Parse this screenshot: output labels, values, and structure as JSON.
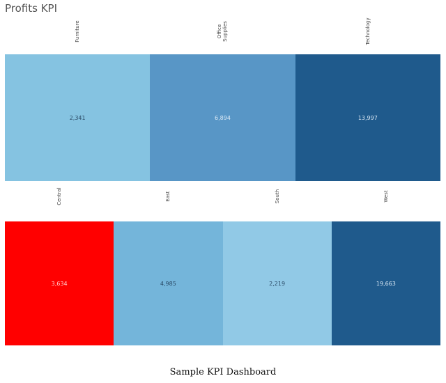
{
  "title": "Profits KPI",
  "caption": "Sample KPI Dashboard",
  "chart_data": [
    {
      "type": "heatmap",
      "title": "Profits KPI",
      "categories": [
        "Furniture",
        "Office\nSupplies",
        "Technology"
      ],
      "values": [
        "2,341",
        "6,894",
        "13,997"
      ],
      "colors": [
        "#85c3e1",
        "#5896c6",
        "#1f5a8c"
      ],
      "text_colors": [
        "#2a4a66",
        "#dbe9f5",
        "#dbe9f5"
      ]
    },
    {
      "type": "heatmap",
      "categories": [
        "Central",
        "East",
        "South",
        "West"
      ],
      "values": [
        "3,634",
        "4,985",
        "2,219",
        "19,663"
      ],
      "colors": [
        "#ff0000",
        "#74b5da",
        "#91c9e6",
        "#1f5a8c"
      ],
      "text_colors": [
        "#ffd0d0",
        "#2a4a66",
        "#2a4a66",
        "#dbe9f5"
      ]
    }
  ]
}
